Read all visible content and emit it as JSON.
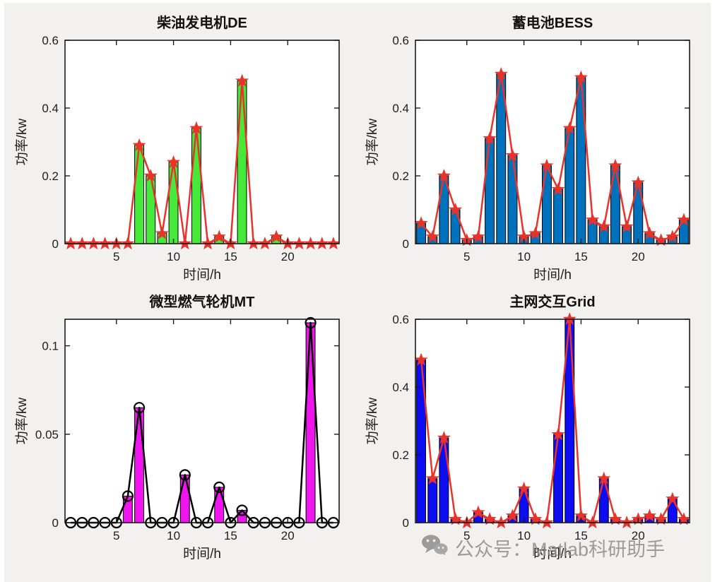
{
  "figure": {
    "background": "#f2f1ef",
    "plot_background": "#ffffff",
    "axis_color": "#1a1a1a",
    "watermark": {
      "icon": "wechat-icon",
      "text": "公众号：Matlab科研助手",
      "color": "#8d8d8d"
    }
  },
  "chart_data": [
    {
      "id": "diesel-de",
      "type": "bar",
      "title": "柴油发电机DE",
      "xlabel": "时间/h",
      "ylabel": "功率/kw",
      "x": [
        1,
        2,
        3,
        4,
        5,
        6,
        7,
        8,
        9,
        10,
        11,
        12,
        13,
        14,
        15,
        16,
        17,
        18,
        19,
        20,
        21,
        22,
        23,
        24
      ],
      "values": [
        0,
        0,
        0,
        0,
        0,
        0,
        0.29,
        0.2,
        0.03,
        0.24,
        0,
        0.34,
        0,
        0.02,
        0,
        0.48,
        0,
        0,
        0.02,
        0,
        0,
        0,
        0,
        0
      ],
      "xlim": [
        0.5,
        24.5
      ],
      "ylim": [
        0,
        0.6
      ],
      "xticks": [
        5,
        10,
        15,
        20
      ],
      "yticks": [
        0,
        0.2,
        0.4,
        0.6
      ],
      "bar_color": "#46e83a",
      "line_color": "#e8332a",
      "marker": "star",
      "grid": false
    },
    {
      "id": "battery-bess",
      "type": "bar",
      "title": "蓄电池BESS",
      "xlabel": "时间/h",
      "ylabel": "功率/kw",
      "x": [
        1,
        2,
        3,
        4,
        5,
        6,
        7,
        8,
        9,
        10,
        11,
        12,
        13,
        14,
        15,
        16,
        17,
        18,
        19,
        20,
        21,
        22,
        23,
        24
      ],
      "values": [
        0.06,
        0.02,
        0.2,
        0.1,
        0.01,
        0.02,
        0.31,
        0.5,
        0.26,
        0.02,
        0.03,
        0.23,
        0.16,
        0.34,
        0.49,
        0.07,
        0.05,
        0.23,
        0.05,
        0.18,
        0.03,
        0.01,
        0.02,
        0.07
      ],
      "xlim": [
        0.5,
        24.5
      ],
      "ylim": [
        0,
        0.6
      ],
      "xticks": [
        5,
        10,
        15,
        20
      ],
      "yticks": [
        0,
        0.2,
        0.4,
        0.6
      ],
      "bar_color": "#0072bd",
      "line_color": "#e8332a",
      "marker": "star",
      "grid": false
    },
    {
      "id": "micro-turbine-mt",
      "type": "bar",
      "title": "微型燃气轮机MT",
      "xlabel": "时间/h",
      "ylabel": "功率/kw",
      "x": [
        1,
        2,
        3,
        4,
        5,
        6,
        7,
        8,
        9,
        10,
        11,
        12,
        13,
        14,
        15,
        16,
        17,
        18,
        19,
        20,
        21,
        22,
        23,
        24
      ],
      "values": [
        0,
        0,
        0,
        0,
        0,
        0.015,
        0.065,
        0,
        0,
        0,
        0.027,
        0,
        0,
        0.02,
        0,
        0.007,
        0,
        0,
        0,
        0,
        0,
        0.113,
        0,
        0
      ],
      "xlim": [
        0.5,
        24.5
      ],
      "ylim": [
        0,
        0.115
      ],
      "xticks": [
        5,
        10,
        15,
        20
      ],
      "yticks": [
        0,
        0.05,
        0.1
      ],
      "bar_color": "#ee15ee",
      "line_color": "#000000",
      "marker": "circle",
      "grid": false
    },
    {
      "id": "main-grid",
      "type": "bar",
      "title": "主网交互Grid",
      "xlabel": "时间/h",
      "ylabel": "功率/kw",
      "x": [
        1,
        2,
        3,
        4,
        5,
        6,
        7,
        8,
        9,
        10,
        11,
        12,
        13,
        14,
        15,
        16,
        17,
        18,
        19,
        20,
        21,
        22,
        23,
        24
      ],
      "values": [
        0.48,
        0.13,
        0.25,
        0.01,
        0,
        0.03,
        0.01,
        0,
        0.02,
        0.1,
        0.01,
        0,
        0.26,
        0.6,
        0.02,
        0,
        0.13,
        0.01,
        0,
        0.01,
        0.02,
        0.01,
        0.07,
        0.01
      ],
      "xlim": [
        0.5,
        24.5
      ],
      "ylim": [
        0,
        0.6
      ],
      "xticks": [
        5,
        10,
        15,
        20
      ],
      "yticks": [
        0,
        0.2,
        0.4,
        0.6
      ],
      "bar_color": "#0d0df2",
      "line_color": "#e8332a",
      "marker": "star",
      "grid": false
    }
  ]
}
